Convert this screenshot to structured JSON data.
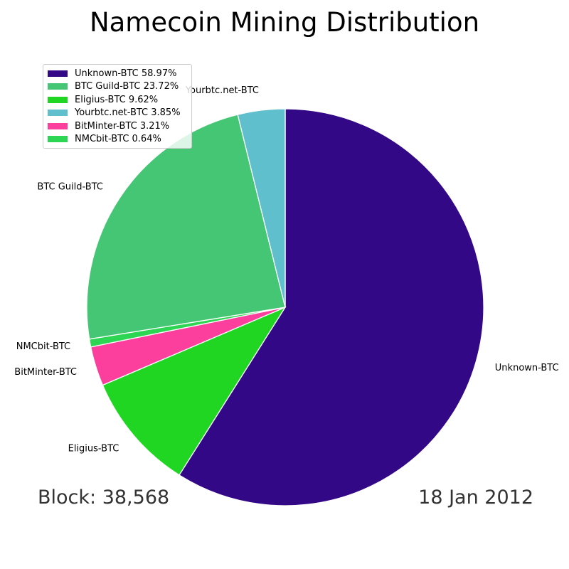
{
  "title": "Namecoin Mining Distribution",
  "footer": {
    "block": "Block: 38,568",
    "date": "18 Jan 2012"
  },
  "chart_data": {
    "type": "pie",
    "title": "Namecoin Mining Distribution",
    "start_angle_deg": 90,
    "direction": "clockwise",
    "legend_position": "top-left",
    "slices": [
      {
        "label": "Unknown-BTC",
        "value": 58.97,
        "legend": "Unknown-BTC 58.97%",
        "color": "#330887"
      },
      {
        "label": "Eligius-BTC",
        "value": 9.62,
        "legend": "Eligius-BTC 9.62%",
        "color": "#20d623"
      },
      {
        "label": "BitMinter-BTC",
        "value": 3.21,
        "legend": "BitMinter-BTC 3.21%",
        "color": "#fc3f9c"
      },
      {
        "label": "NMCbit-BTC",
        "value": 0.64,
        "legend": "NMCbit-BTC 0.64%",
        "color": "#2cd653"
      },
      {
        "label": "BTC Guild-BTC",
        "value": 23.72,
        "legend": "BTC Guild-BTC 23.72%",
        "color": "#45c674"
      },
      {
        "label": "Yourbtc.net-BTC",
        "value": 3.85,
        "legend": "Yourbtc.net-BTC 3.85%",
        "color": "#5fbfcd"
      }
    ],
    "legend_order": [
      "Unknown-BTC",
      "BTC Guild-BTC",
      "Eligius-BTC",
      "Yourbtc.net-BTC",
      "BitMinter-BTC",
      "NMCbit-BTC"
    ]
  }
}
